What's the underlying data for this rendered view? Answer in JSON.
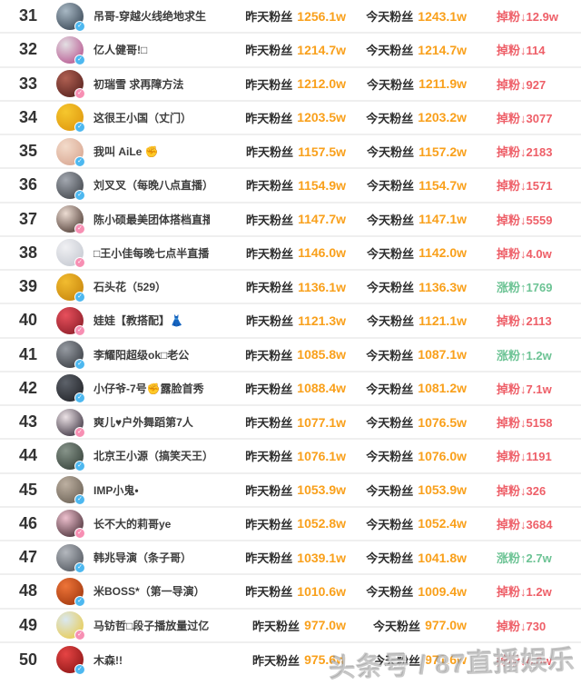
{
  "labels": {
    "yesterday": "昨天粉丝",
    "today": "今天粉丝"
  },
  "icons": {
    "badge_check": "✓"
  },
  "colors": {
    "value_orange": "#f9a01b",
    "drop_red": "#ee5f68",
    "gain_green": "#6cc394",
    "badge_blue": "#4db8f0",
    "badge_pink": "#f78fb3",
    "separator": "#efefef"
  },
  "watermark": "头条号 / 87直播娱乐",
  "rows": [
    {
      "rank": "31",
      "name": "吊哥-穿越火线绝地求生",
      "yesterday": "1256.1w",
      "today": "1243.1w",
      "change_label": "掉粉",
      "change_arrow": "↓",
      "change_value": "12.9w",
      "change_type": "down",
      "avatar": {
        "c1": "#a8b8c4",
        "c2": "#3d4b59"
      },
      "badge": "blue"
    },
    {
      "rank": "32",
      "name": "亿人健哥!□",
      "yesterday": "1214.7w",
      "today": "1214.7w",
      "change_label": "掉粉",
      "change_arrow": "↓",
      "change_value": "114",
      "change_type": "down",
      "avatar": {
        "c1": "#e3dfe3",
        "c2": "#b85a92"
      },
      "badge": "blue"
    },
    {
      "rank": "33",
      "name": "初瑞雪 求再障方法",
      "yesterday": "1212.0w",
      "today": "1211.9w",
      "change_label": "掉粉",
      "change_arrow": "↓",
      "change_value": "927",
      "change_type": "down",
      "avatar": {
        "c1": "#b06052",
        "c2": "#5a2420"
      },
      "badge": "pink"
    },
    {
      "rank": "34",
      "name": "这很王小国（丈门）",
      "yesterday": "1203.5w",
      "today": "1203.2w",
      "change_label": "掉粉",
      "change_arrow": "↓",
      "change_value": "3077",
      "change_type": "down",
      "avatar": {
        "c1": "#f6c72e",
        "c2": "#e09a10"
      },
      "badge": "blue"
    },
    {
      "rank": "35",
      "name": "我叫 AiLe ✊",
      "yesterday": "1157.5w",
      "today": "1157.2w",
      "change_label": "掉粉",
      "change_arrow": "↓",
      "change_value": "2183",
      "change_type": "down",
      "avatar": {
        "c1": "#f3dbca",
        "c2": "#d9a893"
      },
      "badge": "blue"
    },
    {
      "rank": "36",
      "name": "刘叉叉（每晚八点直播）",
      "yesterday": "1154.9w",
      "today": "1154.7w",
      "change_label": "掉粉",
      "change_arrow": "↓",
      "change_value": "1571",
      "change_type": "down",
      "avatar": {
        "c1": "#a3a8b0",
        "c2": "#44484e"
      },
      "badge": "blue"
    },
    {
      "rank": "37",
      "name": "陈小硕最美团体搭档直播",
      "yesterday": "1147.7w",
      "today": "1147.1w",
      "change_label": "掉粉",
      "change_arrow": "↓",
      "change_value": "5559",
      "change_type": "down",
      "avatar": {
        "c1": "#ecdcd2",
        "c2": "#54413a"
      },
      "badge": "pink"
    },
    {
      "rank": "38",
      "name": "□王小佳每晚七点半直播",
      "yesterday": "1146.0w",
      "today": "1142.0w",
      "change_label": "掉粉",
      "change_arrow": "↓",
      "change_value": "4.0w",
      "change_type": "down",
      "avatar": {
        "c1": "#f0f0f3",
        "c2": "#c6cad2"
      },
      "badge": "pink"
    },
    {
      "rank": "39",
      "name": "石头花（529）",
      "yesterday": "1136.1w",
      "today": "1136.3w",
      "change_label": "涨粉",
      "change_arrow": "↑",
      "change_value": "1769",
      "change_type": "up",
      "avatar": {
        "c1": "#f2bc30",
        "c2": "#c9880e"
      },
      "badge": "blue"
    },
    {
      "rank": "40",
      "name": "娃娃【教搭配】👗",
      "yesterday": "1121.3w",
      "today": "1121.1w",
      "change_label": "掉粉",
      "change_arrow": "↓",
      "change_value": "2113",
      "change_type": "down",
      "avatar": {
        "c1": "#e8505c",
        "c2": "#8f1f2a"
      },
      "badge": "pink"
    },
    {
      "rank": "41",
      "name": "李耀阳超级ok□老公",
      "yesterday": "1085.8w",
      "today": "1087.1w",
      "change_label": "涨粉",
      "change_arrow": "↑",
      "change_value": "1.2w",
      "change_type": "up",
      "avatar": {
        "c1": "#969ba2",
        "c2": "#3c4046"
      },
      "badge": "blue"
    },
    {
      "rank": "42",
      "name": "小仔爷-7号✊露脸首秀",
      "yesterday": "1088.4w",
      "today": "1081.2w",
      "change_label": "掉粉",
      "change_arrow": "↓",
      "change_value": "7.1w",
      "change_type": "down",
      "avatar": {
        "c1": "#5d626a",
        "c2": "#24262b"
      },
      "badge": "blue"
    },
    {
      "rank": "43",
      "name": "爽儿♥户外舞蹈第7人",
      "yesterday": "1077.1w",
      "today": "1076.5w",
      "change_label": "掉粉",
      "change_arrow": "↓",
      "change_value": "5158",
      "change_type": "down",
      "avatar": {
        "c1": "#ece2e6",
        "c2": "#403744"
      },
      "badge": "pink"
    },
    {
      "rank": "44",
      "name": "北京王小源（搞笑天王）",
      "yesterday": "1076.1w",
      "today": "1076.0w",
      "change_label": "掉粉",
      "change_arrow": "↓",
      "change_value": "1191",
      "change_type": "down",
      "avatar": {
        "c1": "#87948a",
        "c2": "#39453d"
      },
      "badge": "blue"
    },
    {
      "rank": "45",
      "name": "IMP小鬼•",
      "yesterday": "1053.9w",
      "today": "1053.9w",
      "change_label": "掉粉",
      "change_arrow": "↓",
      "change_value": "326",
      "change_type": "down",
      "avatar": {
        "c1": "#bdb0a1",
        "c2": "#6e6458"
      },
      "badge": "blue"
    },
    {
      "rank": "46",
      "name": "长不大的莉哥ye",
      "yesterday": "1052.8w",
      "today": "1052.4w",
      "change_label": "掉粉",
      "change_arrow": "↓",
      "change_value": "3684",
      "change_type": "down",
      "avatar": {
        "c1": "#eec0ce",
        "c2": "#4e343c"
      },
      "badge": "pink"
    },
    {
      "rank": "47",
      "name": "韩兆导演（条子哥）",
      "yesterday": "1039.1w",
      "today": "1041.8w",
      "change_label": "涨粉",
      "change_arrow": "↑",
      "change_value": "2.7w",
      "change_type": "up",
      "avatar": {
        "c1": "#b4b8be",
        "c2": "#565b63"
      },
      "badge": "blue"
    },
    {
      "rank": "48",
      "name": "米BOSS*（第一导演）",
      "yesterday": "1010.6w",
      "today": "1009.4w",
      "change_label": "掉粉",
      "change_arrow": "↓",
      "change_value": "1.2w",
      "change_type": "down",
      "avatar": {
        "c1": "#ee7438",
        "c2": "#a33a10"
      },
      "badge": "blue"
    },
    {
      "rank": "49",
      "name": "马钫哲□段子播放量过亿",
      "yesterday": "977.0w",
      "today": "977.0w",
      "change_label": "掉粉",
      "change_arrow": "↓",
      "change_value": "730",
      "change_type": "down",
      "avatar": {
        "c1": "#d9e8f1",
        "c2": "#e9cc52"
      },
      "badge": "pink"
    },
    {
      "rank": "50",
      "name": "木森!!",
      "yesterday": "975.6w",
      "today": "971.6w",
      "change_label": "掉粉",
      "change_arrow": "↓",
      "change_value": "4.0w",
      "change_type": "down",
      "avatar": {
        "c1": "#e64444",
        "c2": "#911818"
      },
      "badge": "blue"
    }
  ]
}
